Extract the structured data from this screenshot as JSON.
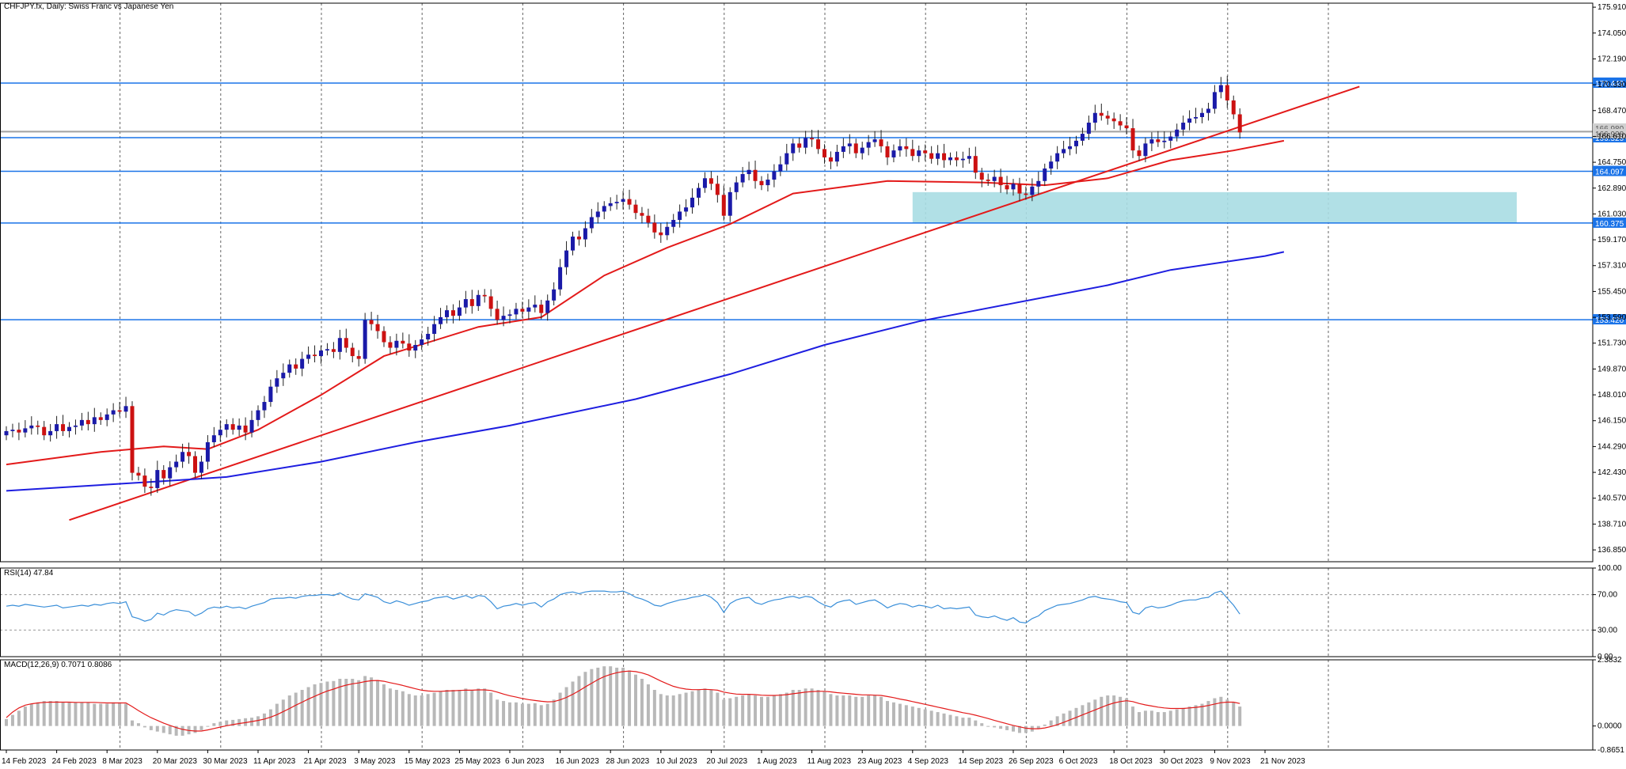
{
  "colors": {
    "background": "#ffffff",
    "bull_candle": "#1a1aa8",
    "bear_candle": "#cc1111",
    "ma_red": "#e31a1a",
    "ma_blue": "#1e1ee0",
    "hline": "#1a73e8",
    "zone": "#a9dde3",
    "rsi_line": "#3a8fd9",
    "macd_hist": "#b8b8b8",
    "macd_signal": "#e31a1a",
    "grid": "#000000"
  },
  "chart_data": [
    {
      "type": "candlestick",
      "title": "CHFJPY.fx, Daily:  Swiss Franc vs Japanese Yen",
      "ylim": [
        136.0,
        176.2
      ],
      "y_ticks": [
        "175.910",
        "174.050",
        "172.190",
        "170.330",
        "168.470",
        "166.610",
        "164.750",
        "162.890",
        "161.030",
        "159.170",
        "157.310",
        "155.450",
        "153.590",
        "151.730",
        "149.870",
        "148.010",
        "146.150",
        "144.290",
        "142.430",
        "140.570",
        "138.710",
        "136.850"
      ],
      "x_labels": [
        "14 Feb 2023",
        "24 Feb 2023",
        "8 Mar 2023",
        "20 Mar 2023",
        "30 Mar 2023",
        "11 Apr 2023",
        "21 Apr 2023",
        "3 May 2023",
        "15 May 2023",
        "25 May 2023",
        "6 Jun 2023",
        "16 Jun 2023",
        "28 Jun 2023",
        "10 Jul 2023",
        "20 Jul 2023",
        "1 Aug 2023",
        "11 Aug 2023",
        "23 Aug 2023",
        "4 Sep 2023",
        "14 Sep 2023",
        "26 Sep 2023",
        "6 Oct 2023",
        "18 Oct 2023",
        "30 Oct 2023",
        "9 Nov 2023",
        "21 Nov 2023"
      ],
      "x_label_index": [
        0,
        8,
        16,
        24,
        32,
        40,
        48,
        56,
        64,
        72,
        80,
        88,
        96,
        104,
        112,
        120,
        128,
        136,
        144,
        152,
        160,
        168,
        176,
        184,
        192,
        200
      ],
      "closes": [
        145.4,
        145.5,
        145.3,
        145.6,
        145.8,
        145.7,
        145.1,
        145.4,
        145.9,
        145.4,
        145.7,
        145.8,
        146.2,
        145.9,
        146.4,
        146.2,
        146.6,
        146.9,
        146.8,
        147.2,
        142.4,
        142.2,
        141.4,
        141.3,
        142.6,
        142.0,
        142.8,
        143.2,
        143.9,
        143.6,
        142.4,
        143.2,
        144.6,
        145.1,
        145.5,
        145.9,
        145.5,
        145.8,
        145.3,
        146.2,
        146.9,
        147.5,
        148.6,
        149.2,
        149.6,
        150.2,
        149.9,
        150.6,
        150.9,
        150.8,
        151.2,
        151.3,
        151.1,
        152.1,
        151.4,
        150.8,
        150.6,
        153.4,
        153.1,
        152.6,
        151.8,
        151.4,
        151.9,
        151.7,
        151.2,
        151.6,
        152.0,
        152.4,
        153.1,
        153.6,
        154.1,
        153.7,
        154.3,
        154.9,
        154.4,
        155.2,
        155.1,
        154.2,
        153.4,
        153.7,
        153.8,
        154.2,
        154.0,
        154.3,
        154.5,
        153.9,
        154.8,
        155.6,
        157.2,
        158.4,
        159.4,
        159.2,
        160.0,
        160.8,
        161.2,
        161.6,
        161.8,
        161.9,
        162.1,
        161.7,
        161.1,
        160.9,
        160.4,
        159.7,
        159.5,
        160.1,
        160.6,
        161.2,
        161.5,
        162.2,
        162.9,
        163.6,
        163.2,
        162.4,
        160.9,
        162.6,
        163.3,
        163.9,
        164.2,
        163.4,
        163.1,
        163.5,
        164.1,
        164.6,
        165.4,
        166.1,
        165.8,
        166.5,
        166.4,
        165.7,
        165.1,
        164.8,
        165.5,
        165.9,
        166.1,
        165.4,
        165.8,
        166.2,
        166.4,
        165.9,
        165.1,
        165.6,
        165.9,
        165.7,
        165.2,
        165.6,
        165.4,
        165.0,
        165.4,
        164.9,
        165.1,
        164.9,
        165.0,
        165.2,
        164.0,
        163.5,
        163.4,
        163.7,
        163.1,
        162.8,
        163.2,
        162.5,
        162.4,
        163.0,
        163.4,
        164.3,
        164.8,
        165.4,
        165.7,
        165.9,
        166.3,
        166.8,
        167.6,
        168.3,
        168.1,
        167.9,
        167.7,
        167.4,
        167.2,
        165.6,
        165.2,
        166.1,
        166.4,
        166.2,
        166.3,
        166.6,
        167.1,
        167.6,
        167.9,
        168.0,
        168.3,
        168.6,
        169.8,
        170.3,
        169.2,
        168.2,
        166.9
      ],
      "series": [
        {
          "name": "",
          "type": "ma",
          "color": "#e31a1a",
          "points": [
            [
              0,
              143.0
            ],
            [
              15,
              143.9
            ],
            [
              25,
              144.3
            ],
            [
              32,
              144.1
            ],
            [
              40,
              145.5
            ],
            [
              50,
              148.0
            ],
            [
              60,
              150.8
            ],
            [
              75,
              152.9
            ],
            [
              85,
              153.6
            ],
            [
              95,
              156.6
            ],
            [
              105,
              158.6
            ],
            [
              115,
              160.3
            ],
            [
              125,
              162.5
            ],
            [
              140,
              163.4
            ],
            [
              155,
              163.3
            ],
            [
              165,
              163.1
            ],
            [
              175,
              163.6
            ],
            [
              185,
              164.9
            ],
            [
              195,
              165.6
            ],
            [
              203,
              166.3
            ]
          ]
        },
        {
          "name": "",
          "type": "trendline",
          "color": "#e31a1a",
          "points": [
            [
              10,
              139.0
            ],
            [
              215,
              170.2
            ]
          ]
        },
        {
          "name": "",
          "type": "ma",
          "color": "#1e1ee0",
          "points": [
            [
              0,
              141.1
            ],
            [
              25,
              141.8
            ],
            [
              35,
              142.1
            ],
            [
              50,
              143.2
            ],
            [
              65,
              144.6
            ],
            [
              80,
              145.8
            ],
            [
              100,
              147.7
            ],
            [
              115,
              149.5
            ],
            [
              130,
              151.6
            ],
            [
              145,
              153.3
            ],
            [
              160,
              154.6
            ],
            [
              175,
              155.9
            ],
            [
              185,
              157.0
            ],
            [
              200,
              158.0
            ],
            [
              203,
              158.3
            ]
          ]
        }
      ],
      "horizontal_levels": [
        "170.449",
        "166.520",
        "164.097",
        "160.375",
        "153.420"
      ],
      "current_price_labels": [
        "166.980",
        "166.928"
      ],
      "support_zone": {
        "x_from": 144,
        "x_to": 240,
        "y_from": 160.4,
        "y_to": 162.6
      }
    },
    {
      "type": "line",
      "title": "RSI(14) 47.84",
      "ylim": [
        0,
        100
      ],
      "y_ticks": [
        "100.00",
        "70.00",
        "30.00",
        "0.00"
      ],
      "levels": [
        70,
        30
      ],
      "values": [
        57,
        58,
        57,
        59,
        58,
        57,
        56,
        57,
        58,
        55,
        56,
        57,
        58,
        57,
        59,
        58,
        60,
        61,
        60,
        62,
        45,
        43,
        40,
        42,
        49,
        47,
        51,
        53,
        52,
        51,
        46,
        49,
        54,
        56,
        55,
        57,
        55,
        56,
        54,
        57,
        59,
        61,
        65,
        66,
        66,
        67,
        66,
        68,
        69,
        69,
        70,
        70,
        69,
        72,
        68,
        65,
        64,
        71,
        69,
        67,
        62,
        60,
        63,
        61,
        58,
        60,
        62,
        63,
        66,
        67,
        68,
        65,
        67,
        69,
        66,
        69,
        68,
        62,
        54,
        57,
        58,
        60,
        58,
        60,
        61,
        56,
        62,
        65,
        70,
        72,
        73,
        71,
        73,
        74,
        74,
        74,
        73,
        73,
        74,
        71,
        67,
        65,
        62,
        58,
        57,
        60,
        62,
        64,
        65,
        67,
        68,
        70,
        67,
        61,
        50,
        60,
        64,
        66,
        67,
        61,
        59,
        62,
        64,
        65,
        67,
        68,
        66,
        68,
        67,
        62,
        58,
        56,
        61,
        63,
        64,
        59,
        61,
        63,
        64,
        60,
        55,
        58,
        60,
        59,
        56,
        58,
        57,
        55,
        58,
        54,
        55,
        54,
        55,
        56,
        47,
        45,
        44,
        46,
        43,
        41,
        44,
        39,
        38,
        43,
        46,
        52,
        55,
        58,
        59,
        60,
        62,
        64,
        67,
        68,
        66,
        65,
        64,
        62,
        61,
        50,
        48,
        55,
        57,
        55,
        56,
        58,
        61,
        63,
        64,
        64,
        66,
        67,
        72,
        74,
        66,
        58,
        48
      ]
    },
    {
      "type": "bar",
      "title": "MACD(12,26,9) 0.7071 0.8086",
      "ylim": [
        -0.8651,
        2.3832
      ],
      "y_ticks": [
        "2.3832",
        "0.0000",
        "-0.8651"
      ],
      "hist": [
        0.25,
        0.4,
        0.55,
        0.7,
        0.8,
        0.85,
        0.9,
        0.9,
        0.9,
        0.85,
        0.85,
        0.85,
        0.85,
        0.85,
        0.8,
        0.8,
        0.8,
        0.85,
        0.85,
        0.8,
        0.2,
        0.1,
        -0.05,
        -0.15,
        -0.2,
        -0.25,
        -0.3,
        -0.35,
        -0.35,
        -0.3,
        -0.25,
        -0.15,
        0.0,
        0.1,
        0.15,
        0.2,
        0.22,
        0.25,
        0.28,
        0.3,
        0.35,
        0.45,
        0.6,
        0.8,
        0.95,
        1.1,
        1.2,
        1.3,
        1.4,
        1.5,
        1.55,
        1.6,
        1.62,
        1.7,
        1.7,
        1.7,
        1.65,
        1.8,
        1.75,
        1.65,
        1.5,
        1.35,
        1.3,
        1.25,
        1.15,
        1.1,
        1.1,
        1.15,
        1.2,
        1.25,
        1.3,
        1.3,
        1.3,
        1.35,
        1.3,
        1.35,
        1.35,
        1.2,
        0.95,
        0.9,
        0.85,
        0.85,
        0.8,
        0.8,
        0.82,
        0.75,
        0.8,
        0.95,
        1.2,
        1.4,
        1.6,
        1.8,
        1.95,
        2.05,
        2.1,
        2.15,
        2.15,
        2.1,
        2.1,
        2.0,
        1.85,
        1.7,
        1.5,
        1.3,
        1.15,
        1.1,
        1.1,
        1.15,
        1.2,
        1.25,
        1.3,
        1.35,
        1.3,
        1.2,
        0.95,
        1.0,
        1.05,
        1.1,
        1.15,
        1.1,
        1.05,
        1.05,
        1.1,
        1.15,
        1.2,
        1.3,
        1.3,
        1.35,
        1.35,
        1.3,
        1.25,
        1.15,
        1.1,
        1.1,
        1.1,
        1.05,
        1.05,
        1.1,
        1.1,
        1.05,
        0.9,
        0.85,
        0.8,
        0.75,
        0.7,
        0.65,
        0.6,
        0.55,
        0.5,
        0.45,
        0.4,
        0.35,
        0.3,
        0.3,
        0.2,
        0.1,
        0.0,
        -0.05,
        -0.1,
        -0.15,
        -0.2,
        -0.25,
        -0.25,
        -0.2,
        -0.1,
        0.05,
        0.2,
        0.35,
        0.45,
        0.55,
        0.65,
        0.75,
        0.85,
        0.95,
        1.05,
        1.1,
        1.1,
        1.05,
        1.0,
        0.7,
        0.5,
        0.55,
        0.55,
        0.5,
        0.5,
        0.55,
        0.6,
        0.65,
        0.7,
        0.75,
        0.8,
        0.9,
        1.0,
        1.05,
        0.95,
        0.85,
        0.7
      ],
      "signal": [
        0.3,
        0.5,
        0.65,
        0.75,
        0.8,
        0.83,
        0.85,
        0.86,
        0.86,
        0.86,
        0.86,
        0.85,
        0.85,
        0.85,
        0.85,
        0.84,
        0.83,
        0.83,
        0.83,
        0.83,
        0.7,
        0.55,
        0.42,
        0.3,
        0.2,
        0.1,
        0.02,
        -0.06,
        -0.12,
        -0.16,
        -0.18,
        -0.18,
        -0.14,
        -0.09,
        -0.04,
        0.01,
        0.05,
        0.09,
        0.12,
        0.16,
        0.2,
        0.25,
        0.32,
        0.41,
        0.52,
        0.63,
        0.75,
        0.86,
        0.97,
        1.07,
        1.17,
        1.26,
        1.33,
        1.41,
        1.47,
        1.52,
        1.55,
        1.6,
        1.63,
        1.64,
        1.61,
        1.56,
        1.51,
        1.46,
        1.4,
        1.34,
        1.29,
        1.26,
        1.25,
        1.25,
        1.26,
        1.27,
        1.28,
        1.29,
        1.29,
        1.3,
        1.3,
        1.28,
        1.22,
        1.15,
        1.09,
        1.04,
        0.99,
        0.95,
        0.92,
        0.89,
        0.87,
        0.88,
        0.94,
        1.03,
        1.14,
        1.27,
        1.41,
        1.54,
        1.67,
        1.78,
        1.86,
        1.92,
        1.96,
        1.98,
        1.96,
        1.91,
        1.84,
        1.73,
        1.62,
        1.52,
        1.43,
        1.37,
        1.33,
        1.31,
        1.31,
        1.32,
        1.31,
        1.29,
        1.22,
        1.18,
        1.15,
        1.14,
        1.14,
        1.13,
        1.11,
        1.1,
        1.1,
        1.11,
        1.13,
        1.16,
        1.19,
        1.22,
        1.24,
        1.25,
        1.25,
        1.23,
        1.2,
        1.18,
        1.16,
        1.14,
        1.12,
        1.12,
        1.11,
        1.1,
        1.06,
        1.02,
        0.97,
        0.93,
        0.88,
        0.83,
        0.78,
        0.73,
        0.68,
        0.63,
        0.58,
        0.53,
        0.48,
        0.44,
        0.39,
        0.33,
        0.27,
        0.2,
        0.14,
        0.08,
        0.02,
        -0.03,
        -0.08,
        -0.1,
        -0.1,
        -0.07,
        -0.02,
        0.05,
        0.13,
        0.22,
        0.31,
        0.4,
        0.49,
        0.58,
        0.67,
        0.76,
        0.83,
        0.88,
        0.91,
        0.88,
        0.81,
        0.76,
        0.72,
        0.68,
        0.65,
        0.63,
        0.63,
        0.63,
        0.65,
        0.67,
        0.7,
        0.74,
        0.79,
        0.84,
        0.86,
        0.86,
        0.81
      ]
    }
  ]
}
